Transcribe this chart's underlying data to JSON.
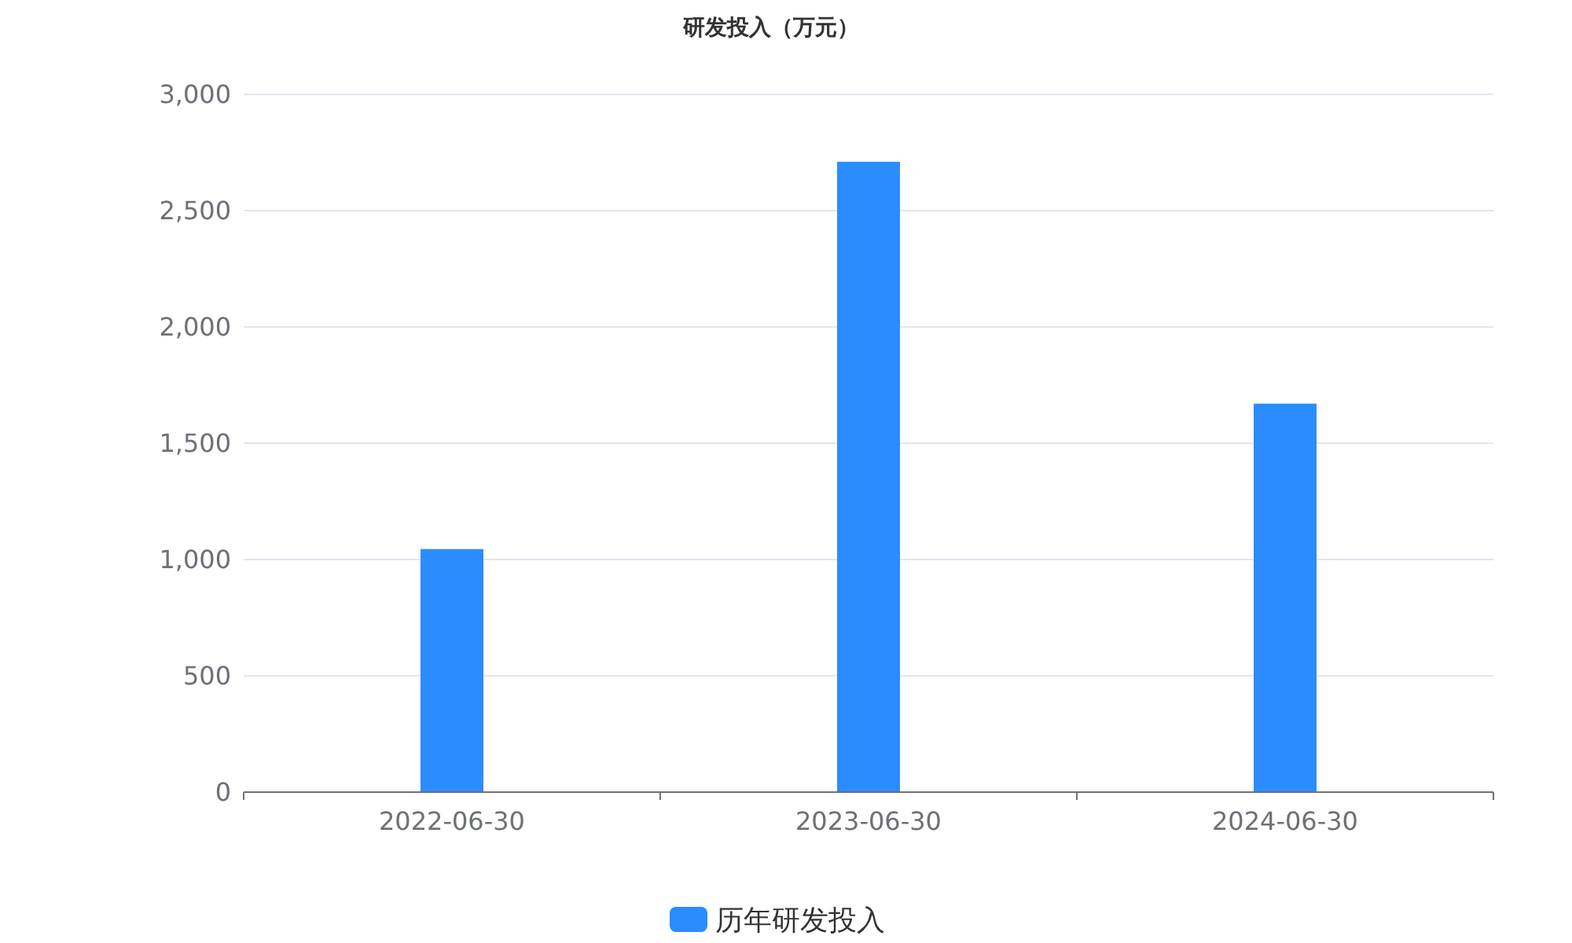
{
  "chart_data": {
    "type": "bar",
    "title": "研发投入（万元）",
    "categories": [
      "2022-06-30",
      "2023-06-30",
      "2024-06-30"
    ],
    "series": [
      {
        "name": "历年研发投入",
        "color": "#2b8cff",
        "values": [
          1045,
          2710,
          1670
        ]
      }
    ],
    "ylim": [
      0,
      3000
    ],
    "yticks": [
      {
        "value": 0,
        "label": "0"
      },
      {
        "value": 500,
        "label": "500"
      },
      {
        "value": 1000,
        "label": "1,000"
      },
      {
        "value": 1500,
        "label": "1,500"
      },
      {
        "value": 2000,
        "label": "2,000"
      },
      {
        "value": 2500,
        "label": "2,500"
      },
      {
        "value": 3000,
        "label": "3,000"
      }
    ],
    "grid": "y",
    "legend": "bottom"
  }
}
